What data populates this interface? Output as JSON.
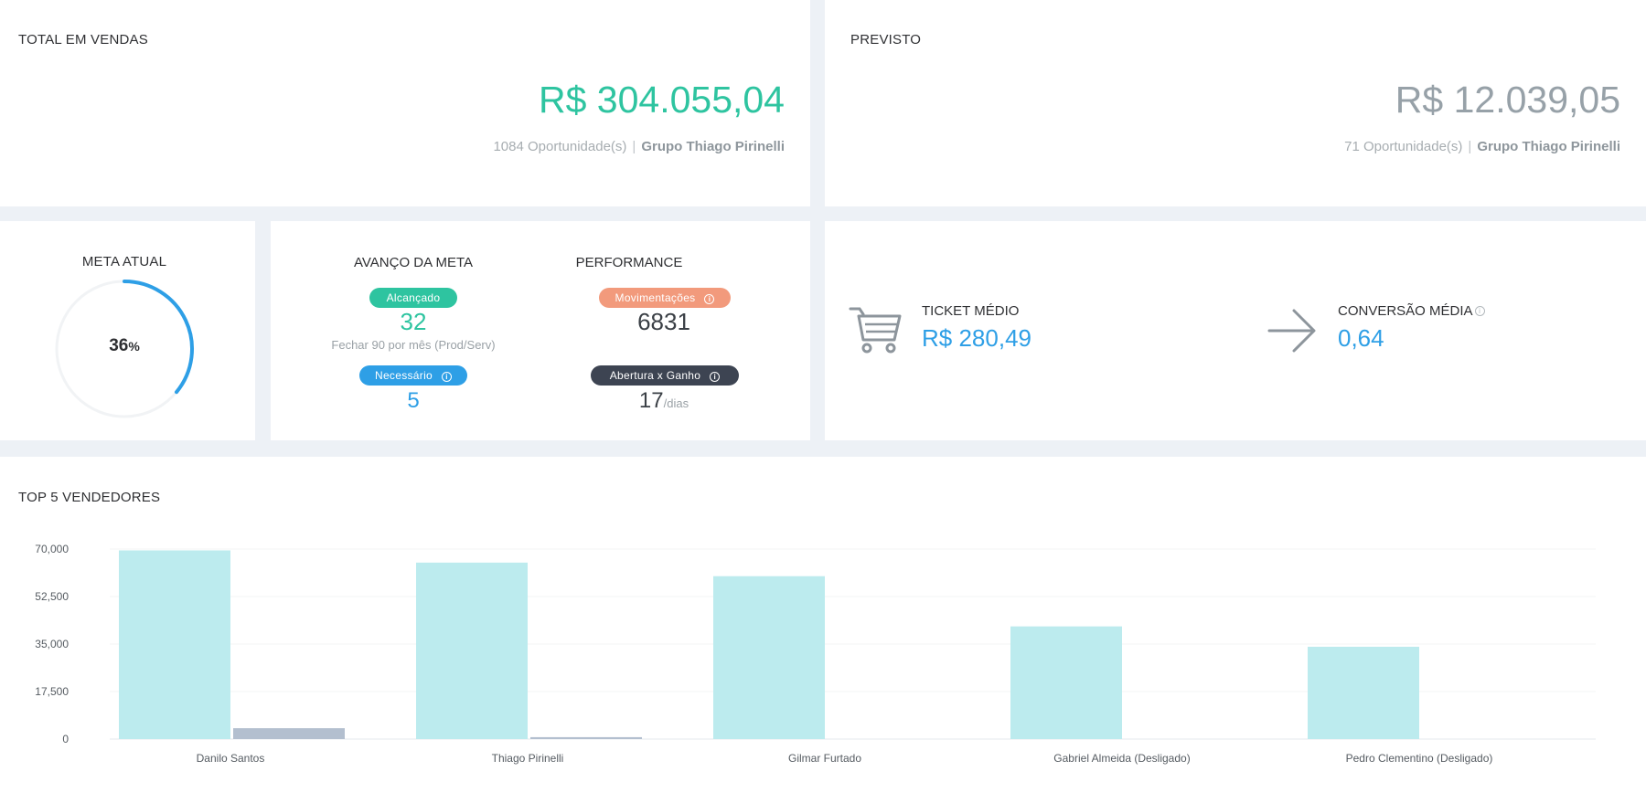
{
  "total_sales": {
    "title": "TOTAL EM VENDAS",
    "amount": "R$ 304.055,04",
    "opportunities": "1084 Oportunidade(s)",
    "separator": "|",
    "group": "Grupo Thiago Pirinelli"
  },
  "forecast": {
    "title": "PREVISTO",
    "amount": "R$ 12.039,05",
    "opportunities": "71 Oportunidade(s)",
    "separator": "|",
    "group": "Grupo Thiago Pirinelli"
  },
  "current_goal": {
    "title": "META ATUAL",
    "percent": "36",
    "percent_unit": "%",
    "progress": 0.36
  },
  "goal_progress": {
    "title": "AVANÇO DA META",
    "achieved_label": "Alcançado",
    "achieved_value": "32",
    "achieved_hint": "Fechar 90 por mês (Prod/Serv)",
    "needed_label": "Necessário",
    "needed_value": "5"
  },
  "performance": {
    "title": "PERFORMANCE",
    "moves_label": "Movimentações",
    "moves_value": "6831",
    "open_won_label": "Abertura x Ganho",
    "open_won_value": "17",
    "open_won_unit": "/dias"
  },
  "ticket": {
    "label": "TICKET MÉDIO",
    "value": "R$ 280,49",
    "icon": "shopping-cart-icon"
  },
  "conversion": {
    "label": "CONVERSÃO MÉDIA",
    "value": "0,64",
    "icon": "arrow-right-icon"
  },
  "colors": {
    "green": "#2ec4a0",
    "blue": "#2e9fe6",
    "salmon": "#f29a7c",
    "dark": "#3d4452",
    "bar_primary": "#bcebee",
    "bar_secondary": "#b3bfcf"
  },
  "top_sellers": {
    "title": "TOP 5 VENDEDORES"
  },
  "chart_data": {
    "type": "bar",
    "categories": [
      "Danilo Santos",
      "Thiago Pirinelli",
      "Gilmar Furtado",
      "Gabriel Almeida (Desligado)",
      "Pedro Clementino (Desligado)"
    ],
    "series": [
      {
        "values": [
          69500,
          65000,
          60000,
          41500,
          34000
        ]
      },
      {
        "values": [
          4000,
          700,
          0,
          0,
          0
        ]
      }
    ],
    "ylim": [
      0,
      70000
    ],
    "yticks": [
      "0",
      "17,500",
      "35,000",
      "52,500",
      "70,000"
    ],
    "ytick_values": [
      0,
      17500,
      35000,
      52500,
      70000
    ],
    "grid": true
  }
}
